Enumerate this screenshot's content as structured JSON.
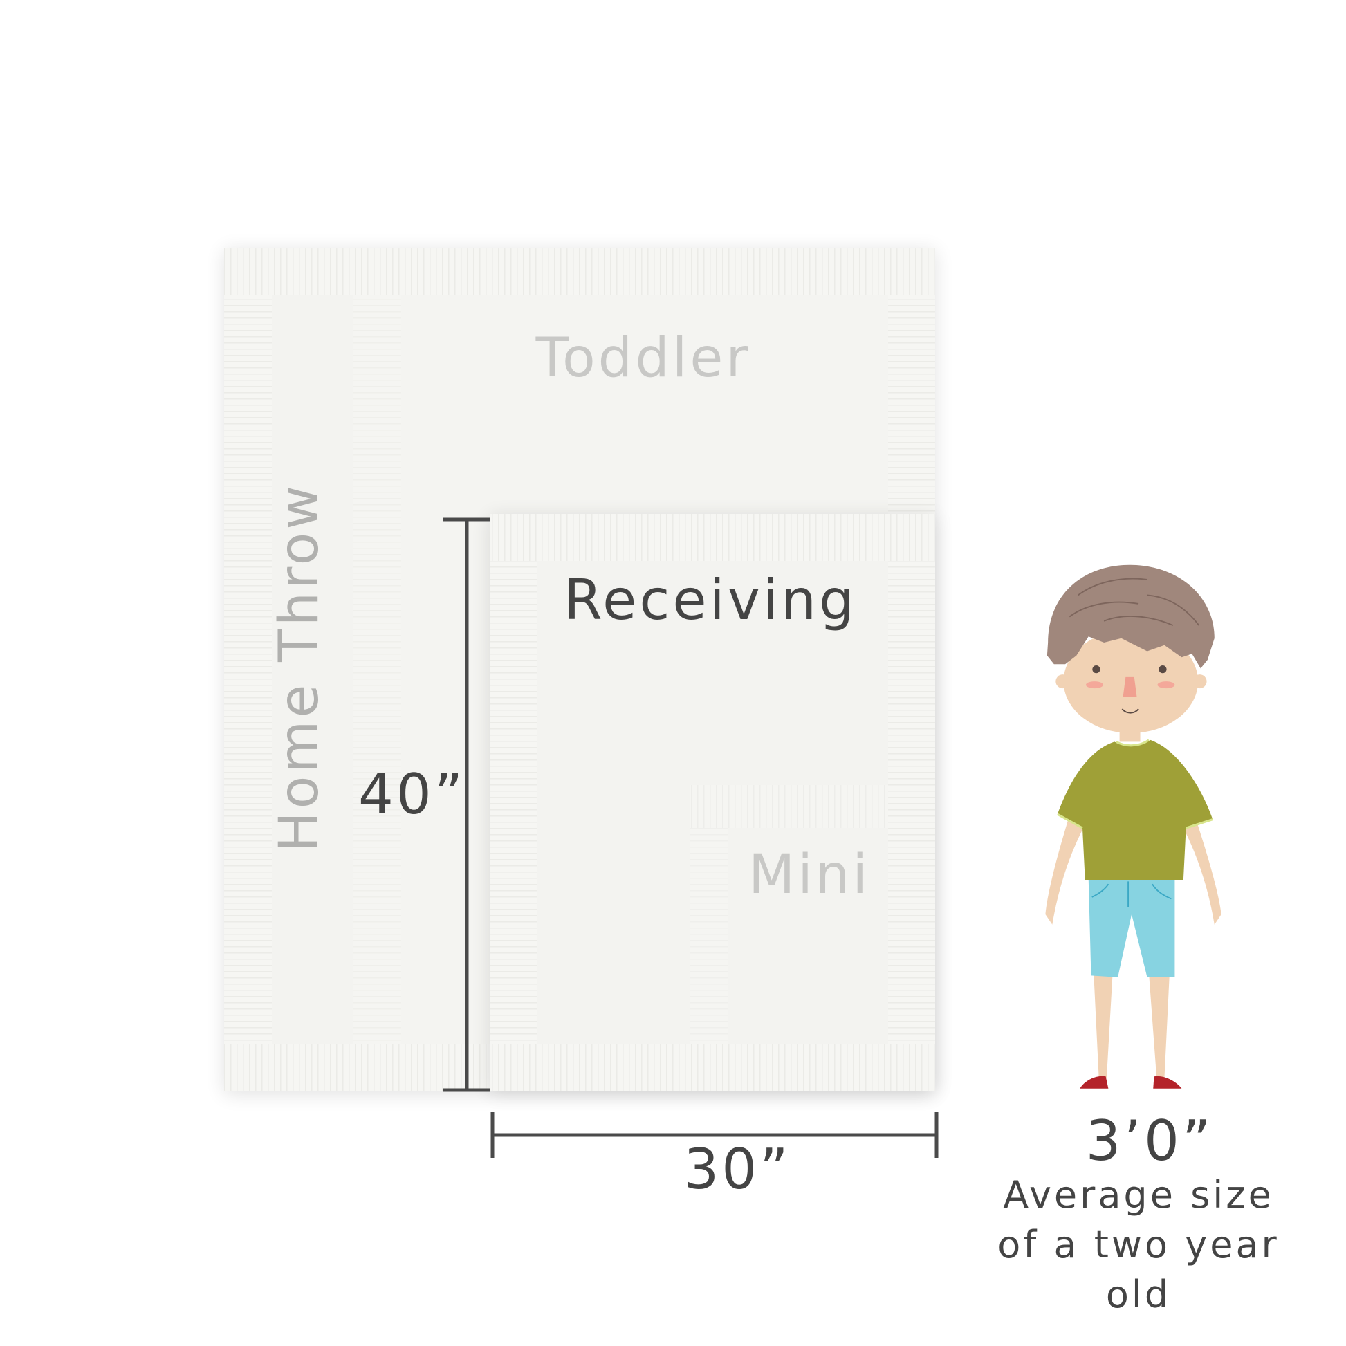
{
  "blankets": {
    "home_throw": "Home Throw",
    "toddler": "Toddler",
    "receiving": "Receiving",
    "mini": "Mini"
  },
  "dimensions": {
    "height": "40”",
    "width": "30”"
  },
  "child": {
    "height": "3’0”",
    "caption_lines": [
      "Average size",
      "of a two year",
      "old"
    ]
  },
  "colors": {
    "blanket": "#f4f4f1",
    "dimension_line": "#4a4a4a",
    "label_faint": "#c8c8c6",
    "label_dark": "#444444",
    "hair": "#a0877c",
    "skin": "#f1d2b4",
    "shirt": "#9fa037",
    "shorts": "#87d3e1",
    "shoes": "#b4232a"
  }
}
